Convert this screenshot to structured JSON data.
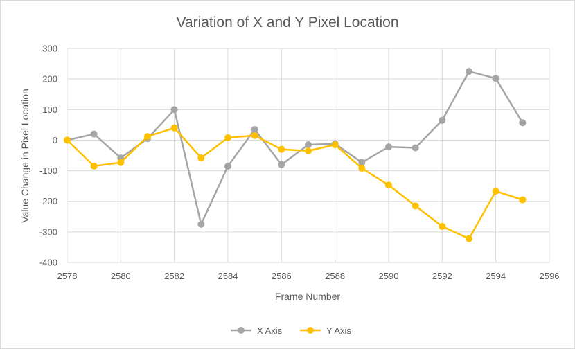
{
  "chart_data": {
    "type": "scatter",
    "title": "Variation of X and Y Pixel Location",
    "xlabel": "Frame Number",
    "ylabel": "Value Change in Pixel Location",
    "xlim": [
      2578,
      2596
    ],
    "ylim": [
      -400,
      300
    ],
    "x_ticks": [
      "2578",
      "2580",
      "2582",
      "2584",
      "2586",
      "2588",
      "2590",
      "2592",
      "2594",
      "2596"
    ],
    "y_ticks": [
      "300",
      "200",
      "100",
      "0",
      "-100",
      "-200",
      "-300",
      "-400"
    ],
    "grid": true,
    "legend_position": "bottom",
    "series": [
      {
        "name": "X Axis",
        "color": "#a5a5a5",
        "x": [
          2578,
          2579,
          2580,
          2581,
          2582,
          2583,
          2584,
          2585,
          2586,
          2587,
          2588,
          2589,
          2590,
          2591,
          2592,
          2593,
          2594,
          2595
        ],
        "y": [
          0,
          20,
          -58,
          5,
          100,
          -275,
          -85,
          35,
          -80,
          -15,
          -12,
          -73,
          -22,
          -25,
          65,
          225,
          202,
          57
        ]
      },
      {
        "name": "Y Axis",
        "color": "#ffc000",
        "x": [
          2578,
          2579,
          2580,
          2581,
          2582,
          2583,
          2584,
          2585,
          2586,
          2587,
          2588,
          2589,
          2590,
          2591,
          2592,
          2593,
          2594,
          2595
        ],
        "y": [
          0,
          -85,
          -73,
          12,
          40,
          -58,
          8,
          15,
          -30,
          -35,
          -15,
          -92,
          -147,
          -215,
          -282,
          -322,
          -167,
          -195
        ]
      }
    ]
  }
}
